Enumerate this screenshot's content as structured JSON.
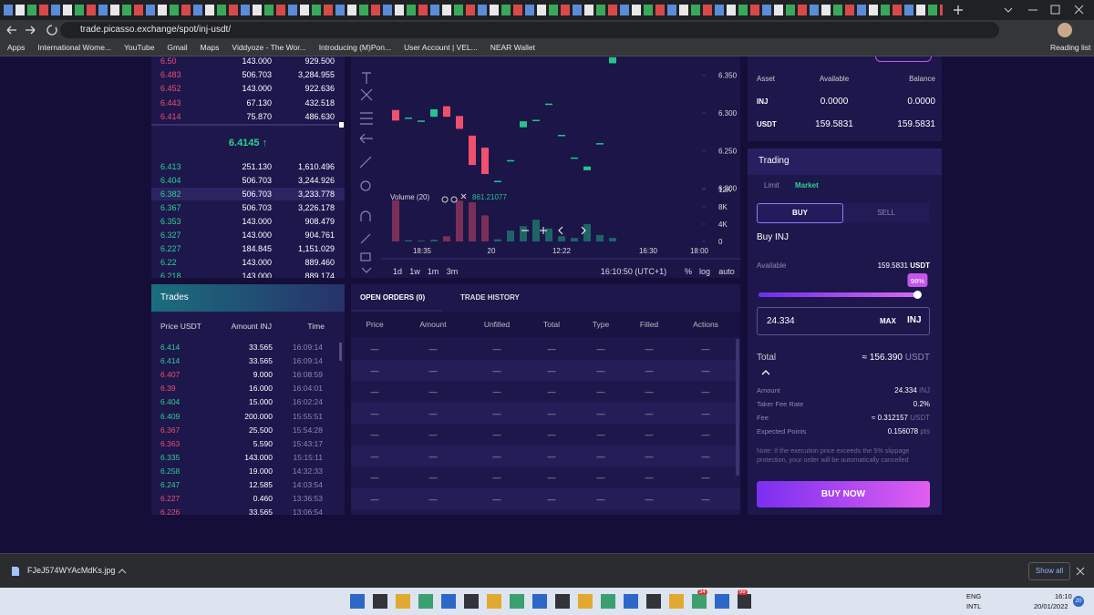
{
  "browser": {
    "url": "trade.picasso.exchange/spot/inj-usdt/",
    "bookmarks": [
      "Apps",
      "International Wome...",
      "YouTube",
      "Gmail",
      "Maps",
      "Viddyoze - The Wor...",
      "Introducing (M)Pon...",
      "User Account | VEL...",
      "NEAR Wallet"
    ],
    "reading_list": "Reading list"
  },
  "order_book": {
    "ask_color": "#ee4f6f",
    "bid_color": "#2fd08f",
    "asks": [
      [
        "6.50",
        "143.000",
        "929.500"
      ],
      [
        "6.483",
        "506.703",
        "3,284.955"
      ],
      [
        "6.452",
        "143.000",
        "922.636"
      ],
      [
        "6.443",
        "67.130",
        "432.518"
      ],
      [
        "6.414",
        "75.870",
        "486.630"
      ]
    ],
    "mid_price": "6.4145 ↑",
    "bids": [
      [
        "6.413",
        "251.130",
        "1,610.496"
      ],
      [
        "6.404",
        "506.703",
        "3,244.926"
      ],
      [
        "6.382",
        "506.703",
        "3,233.778"
      ],
      [
        "6.367",
        "506.703",
        "3,226.178"
      ],
      [
        "6.353",
        "143.000",
        "908.479"
      ],
      [
        "6.327",
        "143.000",
        "904.761"
      ],
      [
        "6.227",
        "184.845",
        "1,151.029"
      ],
      [
        "6.22",
        "143.000",
        "889.460"
      ],
      [
        "6.218",
        "143.000",
        "889.174"
      ]
    ]
  },
  "chart_data": {
    "type": "candlestick",
    "up_color": "#22c58b",
    "down_color": "#f0506e",
    "open": [
      6.304,
      6.294,
      6.29,
      6.295,
      6.309,
      6.296,
      6.27,
      6.254,
      6.21,
      6.2375,
      6.281,
      6.291,
      6.3125,
      6.271,
      6.241,
      6.224,
      6.26,
      6.366
    ],
    "close": [
      6.29,
      6.294,
      6.29,
      6.305,
      6.295,
      6.279,
      6.231,
      6.219,
      6.21,
      6.2375,
      6.289,
      6.291,
      6.3125,
      6.271,
      6.241,
      6.229,
      6.26,
      6.374
    ],
    "volume": [
      9500,
      300,
      200,
      400,
      1200,
      9400,
      9000,
      6000,
      500,
      2500,
      3500,
      5000,
      3000,
      1200,
      800,
      4000,
      1500,
      800
    ],
    "ylim": [
      6.19,
      6.375
    ],
    "yticks": [
      {
        "value": 6.35,
        "label": "6.350"
      },
      {
        "value": 6.3,
        "label": "6.300"
      },
      {
        "value": 6.25,
        "label": "6.250"
      },
      {
        "value": 6.2,
        "label": "6.200"
      }
    ],
    "volume_ylim": [
      0,
      13000
    ],
    "volume_yticks": [
      {
        "value": 12000,
        "label": "12K"
      },
      {
        "value": 8000,
        "label": "8K"
      },
      {
        "value": 4000,
        "label": "4K"
      },
      0
    ],
    "volume_legend": "Volume (20)",
    "volume_value": "861.21077",
    "time_labels": [
      "18:35",
      "20",
      "12:22",
      "16:30",
      "18:00"
    ],
    "intervals": [
      "1d",
      "1w",
      "1m",
      "3m"
    ],
    "clock": "16:10:50 (UTC+1)",
    "scale_options": [
      "%",
      "log",
      "auto"
    ]
  },
  "trades": {
    "title": "Trades",
    "headers": [
      "Price USDT",
      "Amount INJ",
      "Time"
    ],
    "rows": [
      {
        "price": "6.414",
        "amount": "33.565",
        "time": "16:09:14",
        "color": "#2fd08f"
      },
      {
        "price": "6.414",
        "amount": "33.565",
        "time": "16:09:14",
        "color": "#2fd08f"
      },
      {
        "price": "6.407",
        "amount": "9.000",
        "time": "16:08:59",
        "color": "#ee4f6f"
      },
      {
        "price": "6.39",
        "amount": "16.000",
        "time": "16:04:01",
        "color": "#ee4f6f"
      },
      {
        "price": "6.404",
        "amount": "15.000",
        "time": "16:02:24",
        "color": "#2fd08f"
      },
      {
        "price": "6.409",
        "amount": "200.000",
        "time": "15:55:51",
        "color": "#2fd08f"
      },
      {
        "price": "6.367",
        "amount": "25.500",
        "time": "15:54:28",
        "color": "#ee4f6f"
      },
      {
        "price": "6.363",
        "amount": "5.590",
        "time": "15:43:17",
        "color": "#ee4f6f"
      },
      {
        "price": "6.335",
        "amount": "143.000",
        "time": "15:15:11",
        "color": "#2fd08f"
      },
      {
        "price": "6.258",
        "amount": "19.000",
        "time": "14:32:33",
        "color": "#2fd08f"
      },
      {
        "price": "6.247",
        "amount": "12.585",
        "time": "14:03:54",
        "color": "#2fd08f"
      },
      {
        "price": "6.227",
        "amount": "0.460",
        "time": "13:36:53",
        "color": "#ee4f6f"
      },
      {
        "price": "6.226",
        "amount": "33.565",
        "time": "13:06:54",
        "color": "#ee4f6f"
      }
    ]
  },
  "orders": {
    "tabs": [
      "OPEN ORDERS (0)",
      "TRADE HISTORY"
    ],
    "headers": [
      "Price",
      "Amount",
      "Unfilled",
      "Total",
      "Type",
      "Filled",
      "Actions"
    ],
    "placeholder": "—"
  },
  "balances": {
    "headers": [
      "Asset",
      "Available",
      "Balance"
    ],
    "rows": [
      [
        "INJ",
        "0.0000",
        "0.0000"
      ],
      [
        "USDT",
        "159.5831",
        "159.5831"
      ]
    ]
  },
  "trading": {
    "title": "Trading",
    "order_types": [
      "Limit",
      "Market"
    ],
    "sides": [
      "BUY",
      "SELL"
    ],
    "heading": "Buy INJ",
    "available_label": "Available",
    "available_value": "159.5831",
    "available_unit": "USDT",
    "slider": {
      "value": 98,
      "label": "98%"
    },
    "amount_input": "24.334",
    "max": "MAX",
    "input_unit": "INJ",
    "total_label": "Total",
    "total_value": "≈ 156.390",
    "total_unit": "USDT",
    "details": [
      {
        "label": "Amount",
        "value": "24.334",
        "unit": "INJ"
      },
      {
        "label": "Taker Fee Rate",
        "value": "0.2%",
        "unit": ""
      },
      {
        "label": "Fee",
        "value": "≈ 0.312157",
        "unit": "USDT"
      },
      {
        "label": "Expected Points",
        "value": "0.156078",
        "unit": "pts"
      }
    ],
    "note": "Note: If the execution price exceeds the 5% slippage protection, your order will be automatically cancelled",
    "button": "BUY NOW"
  },
  "downloads": {
    "file": "FJeJ574WYAcMdKs.jpg",
    "show_all": "Show all"
  },
  "taskbar": {
    "badges": [
      "34",
      "99"
    ],
    "lang": "ENG",
    "layout": "INTL",
    "time": "16:10",
    "date": "20/01/2022",
    "notifications": "20"
  }
}
